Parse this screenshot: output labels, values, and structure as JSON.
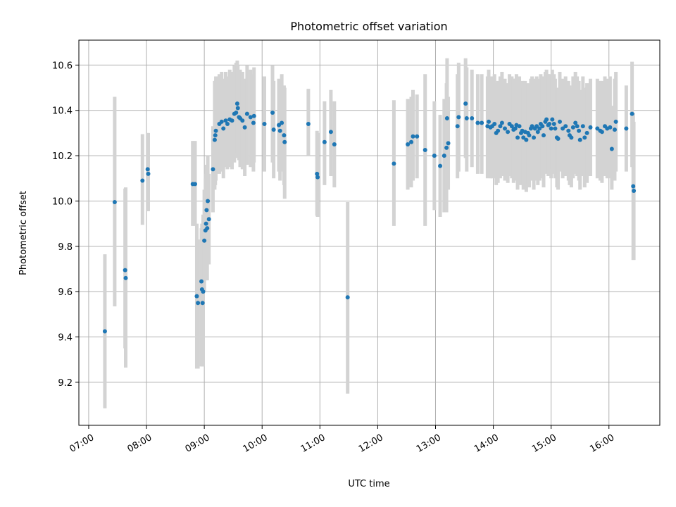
{
  "chart_data": {
    "type": "scatter",
    "title": "Photometric offset variation",
    "xlabel": "UTC time",
    "ylabel": "Photometric offset",
    "x_unit": "hours UTC",
    "xlim": [
      6.83,
      16.88
    ],
    "ylim": [
      9.01,
      10.71
    ],
    "xticks": [
      {
        "v": 7,
        "label": "07:00"
      },
      {
        "v": 8,
        "label": "08:00"
      },
      {
        "v": 9,
        "label": "09:00"
      },
      {
        "v": 10,
        "label": "10:00"
      },
      {
        "v": 11,
        "label": "11:00"
      },
      {
        "v": 12,
        "label": "12:00"
      },
      {
        "v": 13,
        "label": "13:00"
      },
      {
        "v": 14,
        "label": "14:00"
      },
      {
        "v": 15,
        "label": "15:00"
      },
      {
        "v": 16,
        "label": "16:00"
      }
    ],
    "yticks": [
      {
        "v": 9.2,
        "label": "9.2"
      },
      {
        "v": 9.4,
        "label": "9.4"
      },
      {
        "v": 9.6,
        "label": "9.6"
      },
      {
        "v": 9.8,
        "label": "9.8"
      },
      {
        "v": 10.0,
        "label": "10.0"
      },
      {
        "v": 10.2,
        "label": "10.2"
      },
      {
        "v": 10.4,
        "label": "10.4"
      },
      {
        "v": 10.6,
        "label": "10.6"
      }
    ],
    "grid": true,
    "marker_color": "#1f77b4",
    "errorbar_color": "#d3d3d3",
    "points": [
      [
        7.28,
        9.425,
        9.085,
        9.765
      ],
      [
        7.45,
        9.995,
        9.535,
        10.46
      ],
      [
        7.63,
        9.695,
        9.35,
        10.055
      ],
      [
        7.64,
        9.66,
        9.265,
        10.06
      ],
      [
        7.93,
        10.09,
        9.895,
        10.295
      ],
      [
        8.02,
        10.14,
        9.955,
        10.3
      ],
      [
        8.03,
        10.12,
        9.955,
        10.3
      ],
      [
        8.8,
        10.075,
        9.89,
        10.265
      ],
      [
        8.84,
        10.075,
        9.89,
        10.265
      ],
      [
        8.87,
        9.58,
        9.26,
        9.9
      ],
      [
        8.89,
        9.55,
        9.26,
        9.83
      ],
      [
        8.95,
        9.645,
        9.27,
        9.88
      ],
      [
        8.96,
        9.61,
        9.27,
        9.9
      ],
      [
        8.97,
        9.55,
        9.27,
        9.87
      ],
      [
        8.98,
        9.6,
        9.29,
        9.94
      ],
      [
        9.0,
        9.825,
        9.6,
        10.05
      ],
      [
        9.02,
        9.87,
        9.65,
        10.1
      ],
      [
        9.03,
        9.9,
        9.68,
        10.12
      ],
      [
        9.04,
        9.96,
        9.75,
        10.16
      ],
      [
        9.05,
        9.88,
        9.65,
        10.1
      ],
      [
        9.06,
        10.0,
        9.8,
        10.2
      ],
      [
        9.08,
        9.92,
        9.72,
        10.12
      ],
      [
        9.15,
        10.14,
        9.95,
        10.33
      ],
      [
        9.18,
        10.27,
        10.05,
        10.53
      ],
      [
        9.19,
        10.29,
        10.07,
        10.53
      ],
      [
        9.2,
        10.31,
        10.09,
        10.55
      ],
      [
        9.26,
        10.34,
        10.12,
        10.56
      ],
      [
        9.3,
        10.35,
        10.13,
        10.57
      ],
      [
        9.33,
        10.32,
        10.1,
        10.54
      ],
      [
        9.37,
        10.355,
        10.15,
        10.57
      ],
      [
        9.4,
        10.34,
        10.14,
        10.55
      ],
      [
        9.44,
        10.36,
        10.15,
        10.58
      ],
      [
        9.48,
        10.355,
        10.14,
        10.57
      ],
      [
        9.52,
        10.385,
        10.17,
        10.6
      ],
      [
        9.55,
        10.39,
        10.19,
        10.61
      ],
      [
        9.57,
        10.43,
        10.21,
        10.62
      ],
      [
        9.58,
        10.41,
        10.2,
        10.6
      ],
      [
        9.6,
        10.37,
        10.18,
        10.57
      ],
      [
        9.62,
        10.365,
        10.15,
        10.58
      ],
      [
        9.66,
        10.355,
        10.14,
        10.57
      ],
      [
        9.7,
        10.325,
        10.11,
        10.54
      ],
      [
        9.74,
        10.385,
        10.16,
        10.6
      ],
      [
        9.8,
        10.37,
        10.15,
        10.58
      ],
      [
        9.85,
        10.345,
        10.13,
        10.56
      ],
      [
        9.86,
        10.375,
        10.17,
        10.59
      ],
      [
        10.04,
        10.34,
        10.13,
        10.55
      ],
      [
        10.18,
        10.39,
        10.17,
        10.6
      ],
      [
        10.2,
        10.315,
        10.1,
        10.53
      ],
      [
        10.29,
        10.335,
        10.13,
        10.54
      ],
      [
        10.31,
        10.31,
        10.09,
        10.52
      ],
      [
        10.34,
        10.345,
        10.13,
        10.56
      ],
      [
        10.38,
        10.29,
        10.07,
        10.51
      ],
      [
        10.39,
        10.26,
        10.01,
        10.5
      ],
      [
        10.8,
        10.34,
        10.2,
        10.495
      ],
      [
        10.95,
        10.12,
        9.935,
        10.31
      ],
      [
        10.96,
        10.105,
        9.93,
        10.3
      ],
      [
        11.08,
        10.26,
        10.07,
        10.44
      ],
      [
        11.19,
        10.305,
        10.11,
        10.49
      ],
      [
        11.25,
        10.25,
        10.06,
        10.44
      ],
      [
        11.48,
        9.575,
        9.15,
        9.995
      ],
      [
        12.28,
        10.165,
        9.89,
        10.445
      ],
      [
        12.52,
        10.25,
        10.05,
        10.45
      ],
      [
        12.58,
        10.26,
        10.06,
        10.46
      ],
      [
        12.61,
        10.285,
        10.09,
        10.49
      ],
      [
        12.68,
        10.285,
        10.1,
        10.47
      ],
      [
        12.82,
        10.225,
        9.89,
        10.56
      ],
      [
        12.98,
        10.2,
        9.96,
        10.44
      ],
      [
        13.08,
        10.155,
        9.93,
        10.38
      ],
      [
        13.15,
        10.2,
        9.95,
        10.45
      ],
      [
        13.19,
        10.235,
        9.95,
        10.52
      ],
      [
        13.2,
        10.365,
        10.1,
        10.63
      ],
      [
        13.22,
        10.255,
        10.05,
        10.46
      ],
      [
        13.38,
        10.33,
        10.1,
        10.56
      ],
      [
        13.4,
        10.37,
        10.13,
        10.61
      ],
      [
        13.52,
        10.43,
        10.19,
        10.63
      ],
      [
        13.54,
        10.365,
        10.13,
        10.59
      ],
      [
        13.63,
        10.365,
        10.15,
        10.58
      ],
      [
        13.73,
        10.345,
        10.12,
        10.56
      ],
      [
        13.8,
        10.345,
        10.12,
        10.56
      ],
      [
        13.9,
        10.33,
        10.1,
        10.55
      ],
      [
        13.92,
        10.35,
        10.12,
        10.58
      ],
      [
        13.95,
        10.325,
        10.1,
        10.55
      ],
      [
        13.98,
        10.33,
        10.1,
        10.55
      ],
      [
        14.02,
        10.34,
        10.1,
        10.56
      ],
      [
        14.05,
        10.3,
        10.07,
        10.52
      ],
      [
        14.08,
        10.31,
        10.08,
        10.53
      ],
      [
        14.12,
        10.33,
        10.1,
        10.55
      ],
      [
        14.15,
        10.345,
        10.11,
        10.57
      ],
      [
        14.2,
        10.32,
        10.09,
        10.54
      ],
      [
        14.25,
        10.305,
        10.08,
        10.52
      ],
      [
        14.28,
        10.34,
        10.11,
        10.56
      ],
      [
        14.32,
        10.33,
        10.1,
        10.55
      ],
      [
        14.35,
        10.315,
        10.08,
        10.54
      ],
      [
        14.38,
        10.32,
        10.09,
        10.54
      ],
      [
        14.4,
        10.335,
        10.1,
        10.56
      ],
      [
        14.42,
        10.28,
        10.05,
        10.5
      ],
      [
        14.45,
        10.33,
        10.1,
        10.55
      ],
      [
        14.48,
        10.3,
        10.07,
        10.52
      ],
      [
        14.5,
        10.31,
        10.08,
        10.53
      ],
      [
        14.52,
        10.28,
        10.05,
        10.5
      ],
      [
        14.55,
        10.305,
        10.07,
        10.53
      ],
      [
        14.57,
        10.27,
        10.04,
        10.49
      ],
      [
        14.6,
        10.3,
        10.07,
        10.52
      ],
      [
        14.62,
        10.29,
        10.06,
        10.51
      ],
      [
        14.65,
        10.32,
        10.09,
        10.54
      ],
      [
        14.67,
        10.33,
        10.1,
        10.55
      ],
      [
        14.7,
        10.28,
        10.05,
        10.5
      ],
      [
        14.72,
        10.32,
        10.09,
        10.54
      ],
      [
        14.75,
        10.33,
        10.1,
        10.55
      ],
      [
        14.77,
        10.305,
        10.07,
        10.53
      ],
      [
        14.8,
        10.32,
        10.09,
        10.54
      ],
      [
        14.82,
        10.34,
        10.11,
        10.56
      ],
      [
        14.85,
        10.33,
        10.1,
        10.55
      ],
      [
        14.87,
        10.29,
        10.06,
        10.51
      ],
      [
        14.9,
        10.35,
        10.12,
        10.57
      ],
      [
        14.92,
        10.36,
        10.13,
        10.58
      ],
      [
        14.95,
        10.335,
        10.11,
        10.56
      ],
      [
        14.97,
        10.34,
        10.12,
        10.56
      ],
      [
        15.0,
        10.32,
        10.1,
        10.54
      ],
      [
        15.02,
        10.36,
        10.14,
        10.58
      ],
      [
        15.05,
        10.34,
        10.12,
        10.56
      ],
      [
        15.07,
        10.32,
        10.1,
        10.54
      ],
      [
        15.1,
        10.28,
        10.06,
        10.5
      ],
      [
        15.12,
        10.275,
        10.05,
        10.5
      ],
      [
        15.15,
        10.35,
        10.13,
        10.57
      ],
      [
        15.2,
        10.32,
        10.1,
        10.54
      ],
      [
        15.25,
        10.33,
        10.11,
        10.55
      ],
      [
        15.3,
        10.31,
        10.09,
        10.53
      ],
      [
        15.32,
        10.29,
        10.07,
        10.51
      ],
      [
        15.35,
        10.28,
        10.06,
        10.5
      ],
      [
        15.38,
        10.325,
        10.1,
        10.55
      ],
      [
        15.42,
        10.345,
        10.12,
        10.57
      ],
      [
        15.45,
        10.33,
        10.11,
        10.55
      ],
      [
        15.48,
        10.31,
        10.09,
        10.53
      ],
      [
        15.5,
        10.27,
        10.05,
        10.49
      ],
      [
        15.55,
        10.33,
        10.11,
        10.55
      ],
      [
        15.58,
        10.28,
        10.06,
        10.5
      ],
      [
        15.62,
        10.3,
        10.08,
        10.52
      ],
      [
        15.68,
        10.325,
        10.11,
        10.54
      ],
      [
        15.8,
        10.32,
        10.1,
        10.54
      ],
      [
        15.85,
        10.31,
        10.09,
        10.53
      ],
      [
        15.88,
        10.305,
        10.08,
        10.53
      ],
      [
        15.93,
        10.33,
        10.11,
        10.55
      ],
      [
        15.97,
        10.32,
        10.1,
        10.54
      ],
      [
        16.02,
        10.325,
        10.1,
        10.55
      ],
      [
        16.05,
        10.23,
        10.05,
        10.42
      ],
      [
        16.1,
        10.315,
        10.09,
        10.54
      ],
      [
        16.12,
        10.35,
        10.13,
        10.57
      ],
      [
        16.3,
        10.32,
        10.13,
        10.51
      ],
      [
        16.4,
        10.385,
        10.15,
        10.615
      ],
      [
        16.42,
        10.065,
        9.74,
        10.39
      ],
      [
        16.43,
        10.045,
        9.74,
        10.35
      ]
    ]
  }
}
